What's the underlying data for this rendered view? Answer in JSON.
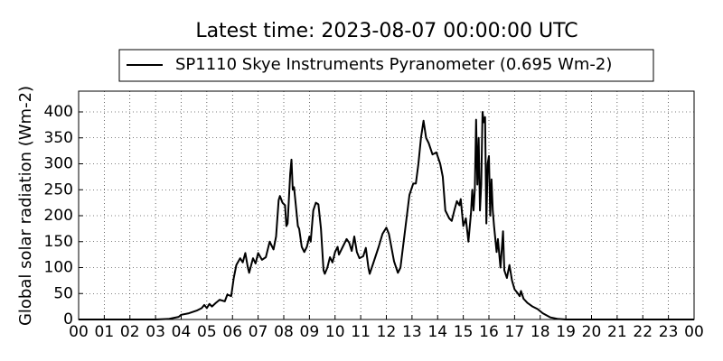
{
  "chart_data": {
    "type": "line",
    "title": "Latest time: 2023-08-07 00:00:00 UTC",
    "y_label": "Global solar radiation (Wm-2)",
    "legend": "top",
    "grid": true,
    "xlim": [
      0,
      24
    ],
    "ylim": [
      0,
      440
    ],
    "yticks": [
      0,
      50,
      100,
      150,
      200,
      250,
      300,
      350,
      400
    ],
    "xticks": [
      {
        "value": 0,
        "label": "00"
      },
      {
        "value": 1,
        "label": "01"
      },
      {
        "value": 2,
        "label": "02"
      },
      {
        "value": 3,
        "label": "03"
      },
      {
        "value": 4,
        "label": "04"
      },
      {
        "value": 5,
        "label": "05"
      },
      {
        "value": 6,
        "label": "06"
      },
      {
        "value": 7,
        "label": "07"
      },
      {
        "value": 8,
        "label": "08"
      },
      {
        "value": 9,
        "label": "09"
      },
      {
        "value": 10,
        "label": "10"
      },
      {
        "value": 11,
        "label": "11"
      },
      {
        "value": 12,
        "label": "12"
      },
      {
        "value": 13,
        "label": "13"
      },
      {
        "value": 14,
        "label": "14"
      },
      {
        "value": 15,
        "label": "15"
      },
      {
        "value": 16,
        "label": "16"
      },
      {
        "value": 17,
        "label": "17"
      },
      {
        "value": 18,
        "label": "18"
      },
      {
        "value": 19,
        "label": "19"
      },
      {
        "value": 20,
        "label": "20"
      },
      {
        "value": 21,
        "label": "21"
      },
      {
        "value": 22,
        "label": "22"
      },
      {
        "value": 23,
        "label": "23"
      },
      {
        "value": 24,
        "label": "00"
      }
    ],
    "x": [
      0,
      3,
      3.5,
      3.9,
      4.0,
      4.3,
      4.6,
      4.8,
      4.9,
      5.0,
      5.1,
      5.2,
      5.35,
      5.5,
      5.7,
      5.8,
      5.95,
      6.05,
      6.15,
      6.3,
      6.4,
      6.5,
      6.6,
      6.65,
      6.8,
      6.9,
      7.0,
      7.15,
      7.3,
      7.45,
      7.6,
      7.7,
      7.8,
      7.85,
      7.95,
      8.05,
      8.1,
      8.15,
      8.25,
      8.3,
      8.35,
      8.4,
      8.45,
      8.55,
      8.6,
      8.7,
      8.8,
      8.9,
      9.0,
      9.05,
      9.15,
      9.25,
      9.35,
      9.45,
      9.55,
      9.6,
      9.7,
      9.8,
      9.9,
      10.0,
      10.1,
      10.15,
      10.3,
      10.45,
      10.55,
      10.65,
      10.75,
      10.85,
      10.95,
      11.1,
      11.2,
      11.3,
      11.35,
      11.5,
      11.7,
      11.85,
      12.0,
      12.1,
      12.3,
      12.45,
      12.55,
      12.75,
      12.9,
      13.05,
      13.15,
      13.25,
      13.35,
      13.45,
      13.55,
      13.65,
      13.8,
      13.95,
      14.1,
      14.2,
      14.3,
      14.45,
      14.55,
      14.65,
      14.75,
      14.85,
      14.9,
      15.0,
      15.1,
      15.2,
      15.3,
      15.35,
      15.4,
      15.45,
      15.5,
      15.55,
      15.6,
      15.65,
      15.7,
      15.75,
      15.8,
      15.85,
      15.9,
      15.95,
      16.0,
      16.05,
      16.1,
      16.15,
      16.2,
      16.3,
      16.35,
      16.45,
      16.55,
      16.6,
      16.7,
      16.8,
      16.9,
      17.0,
      17.1,
      17.2,
      17.25,
      17.35,
      17.5,
      17.7,
      17.9,
      18.1,
      18.4,
      18.7,
      19,
      24
    ],
    "series": [
      {
        "name": "SP1110 Skye Instruments Pyranometer (0.695 Wm-2)",
        "color": "#000000",
        "values": [
          0,
          0,
          1,
          5,
          9,
          12,
          17,
          22,
          28,
          22,
          30,
          25,
          32,
          38,
          35,
          48,
          45,
          80,
          105,
          118,
          110,
          128,
          100,
          90,
          118,
          108,
          128,
          115,
          120,
          150,
          135,
          160,
          230,
          238,
          225,
          220,
          180,
          185,
          280,
          308,
          250,
          255,
          230,
          180,
          175,
          140,
          130,
          140,
          160,
          150,
          210,
          225,
          222,
          175,
          95,
          88,
          100,
          120,
          110,
          130,
          140,
          125,
          140,
          155,
          148,
          132,
          160,
          130,
          118,
          122,
          138,
          100,
          88,
          110,
          140,
          165,
          177,
          165,
          112,
          90,
          100,
          180,
          240,
          262,
          262,
          300,
          350,
          383,
          350,
          340,
          318,
          322,
          300,
          275,
          210,
          195,
          190,
          210,
          228,
          220,
          232,
          180,
          195,
          150,
          205,
          250,
          210,
          250,
          385,
          260,
          350,
          210,
          260,
          400,
          380,
          390,
          185,
          300,
          315,
          200,
          270,
          210,
          180,
          130,
          155,
          100,
          170,
          95,
          80,
          105,
          75,
          58,
          52,
          45,
          55,
          40,
          32,
          25,
          20,
          12,
          4,
          1,
          0,
          0
        ]
      }
    ]
  }
}
